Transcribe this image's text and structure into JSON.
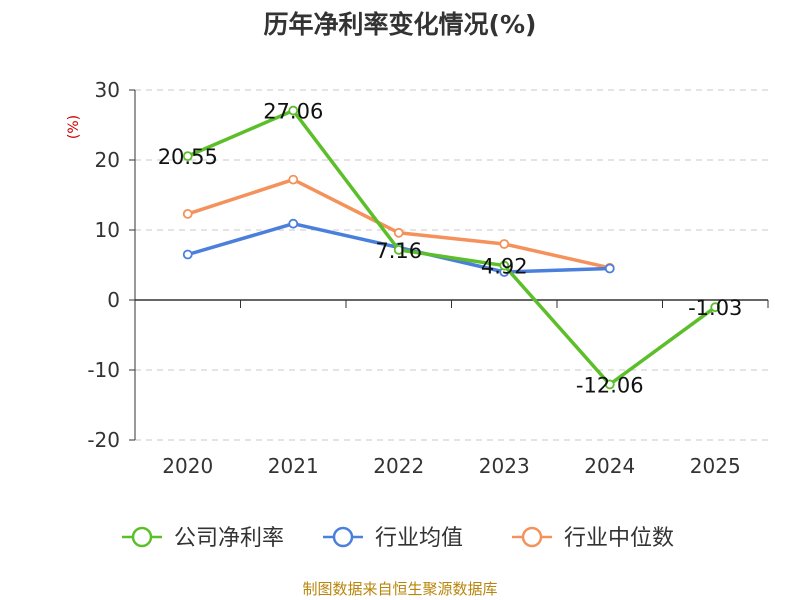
{
  "chart_data": {
    "type": "line",
    "title": "历年净利率变化情况(%)",
    "ylabel": "(%)",
    "xlabel": "",
    "categories": [
      "2020",
      "2021",
      "2022",
      "2023",
      "2024",
      "2025"
    ],
    "ylim": [
      -20,
      30
    ],
    "yticks": [
      "30",
      "20",
      "10",
      "0",
      "-10",
      "-20"
    ],
    "grid": true,
    "legend_position": "bottom",
    "series": [
      {
        "name": "公司净利率",
        "values": [
          20.55,
          27.06,
          7.16,
          4.92,
          -12.06,
          -1.03
        ],
        "labels": [
          "20.55",
          "27.06",
          "7.16",
          "4.92",
          "-12.06",
          "-1.03"
        ],
        "color": "#5cbf2a"
      },
      {
        "name": "行业均值",
        "values": [
          6.5,
          10.9,
          7.5,
          4.0,
          4.5,
          null
        ],
        "color": "#4a7fdc"
      },
      {
        "name": "行业中位数",
        "values": [
          12.3,
          17.2,
          9.6,
          8.0,
          4.6,
          null
        ],
        "color": "#f5915a"
      }
    ]
  },
  "source": "制图数据来自恒生聚源数据库"
}
